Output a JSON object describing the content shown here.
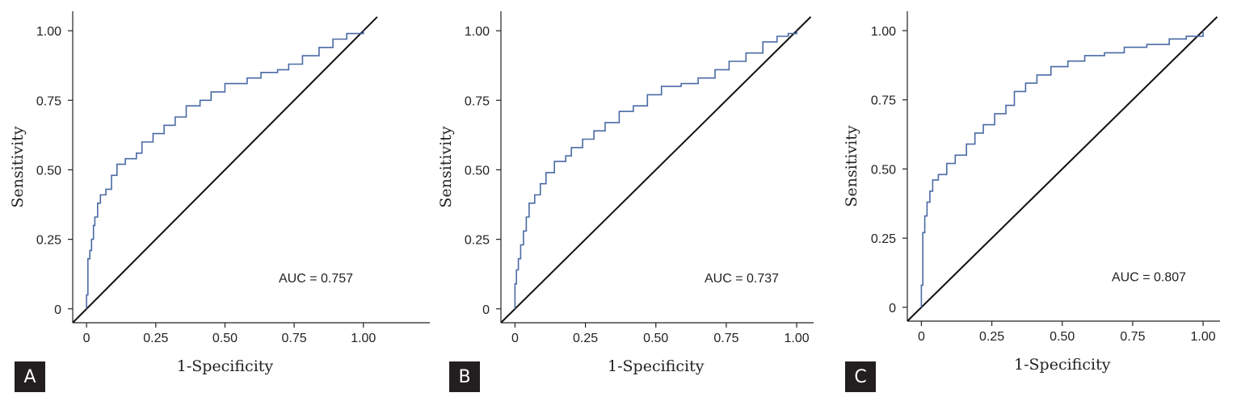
{
  "chart_data": [
    {
      "type": "line",
      "panel": "A",
      "xlabel": "1-Specificity",
      "ylabel": "Sensitivity",
      "xticks": [
        "0",
        "0.25",
        "0.50",
        "0.75",
        "1.00"
      ],
      "yticks": [
        "0",
        "0.25",
        "0.50",
        "0.75",
        "1.00"
      ],
      "annotation": "AUC = 0.757",
      "auc": 0.757,
      "xlim": [
        -0.05,
        1.24
      ],
      "ylim": [
        -0.05,
        1.07
      ],
      "reference_line": [
        [
          -0.05,
          -0.05
        ],
        [
          1.05,
          1.05
        ]
      ],
      "series": [
        {
          "color": "#4a6aa5",
          "points": [
            [
              0,
              0
            ],
            [
              0,
              0.05
            ],
            [
              0.005,
              0.18
            ],
            [
              0.012,
              0.21
            ],
            [
              0.018,
              0.25
            ],
            [
              0.025,
              0.3
            ],
            [
              0.03,
              0.33
            ],
            [
              0.04,
              0.38
            ],
            [
              0.05,
              0.41
            ],
            [
              0.07,
              0.43
            ],
            [
              0.09,
              0.48
            ],
            [
              0.11,
              0.52
            ],
            [
              0.14,
              0.54
            ],
            [
              0.18,
              0.56
            ],
            [
              0.2,
              0.6
            ],
            [
              0.24,
              0.63
            ],
            [
              0.28,
              0.66
            ],
            [
              0.32,
              0.69
            ],
            [
              0.36,
              0.73
            ],
            [
              0.41,
              0.75
            ],
            [
              0.45,
              0.78
            ],
            [
              0.5,
              0.81
            ],
            [
              0.58,
              0.83
            ],
            [
              0.63,
              0.85
            ],
            [
              0.69,
              0.86
            ],
            [
              0.73,
              0.88
            ],
            [
              0.78,
              0.91
            ],
            [
              0.84,
              0.94
            ],
            [
              0.89,
              0.97
            ],
            [
              0.94,
              0.99
            ],
            [
              1.0,
              1.0
            ]
          ]
        }
      ]
    },
    {
      "type": "line",
      "panel": "B",
      "xlabel": "1-Specificity",
      "ylabel": "Sensitivity",
      "xticks": [
        "0",
        "0.25",
        "0.50",
        "0.75",
        "1.00"
      ],
      "yticks": [
        "0",
        "0.25",
        "0.50",
        "0.75",
        "1.00"
      ],
      "annotation": "AUC = 0.737",
      "auc": 0.737,
      "xlim": [
        -0.05,
        1.06
      ],
      "ylim": [
        -0.05,
        1.07
      ],
      "reference_line": [
        [
          -0.05,
          -0.05
        ],
        [
          1.05,
          1.05
        ]
      ],
      "series": [
        {
          "color": "#4a6aa5",
          "points": [
            [
              0,
              0
            ],
            [
              0,
              0.09
            ],
            [
              0.005,
              0.14
            ],
            [
              0.012,
              0.18
            ],
            [
              0.02,
              0.23
            ],
            [
              0.03,
              0.28
            ],
            [
              0.04,
              0.33
            ],
            [
              0.05,
              0.38
            ],
            [
              0.07,
              0.41
            ],
            [
              0.09,
              0.45
            ],
            [
              0.11,
              0.49
            ],
            [
              0.14,
              0.53
            ],
            [
              0.18,
              0.55
            ],
            [
              0.2,
              0.58
            ],
            [
              0.24,
              0.61
            ],
            [
              0.28,
              0.64
            ],
            [
              0.32,
              0.67
            ],
            [
              0.37,
              0.71
            ],
            [
              0.42,
              0.73
            ],
            [
              0.47,
              0.77
            ],
            [
              0.52,
              0.8
            ],
            [
              0.59,
              0.81
            ],
            [
              0.65,
              0.83
            ],
            [
              0.71,
              0.86
            ],
            [
              0.76,
              0.89
            ],
            [
              0.82,
              0.92
            ],
            [
              0.88,
              0.96
            ],
            [
              0.93,
              0.98
            ],
            [
              0.97,
              0.99
            ],
            [
              1.0,
              1.0
            ]
          ]
        }
      ]
    },
    {
      "type": "line",
      "panel": "C",
      "xlabel": "1-Specificity",
      "ylabel": "Sensitivity",
      "xticks": [
        "0",
        "0.25",
        "0.50",
        "0.75",
        "1.00"
      ],
      "yticks": [
        "0",
        "0.25",
        "0.50",
        "0.75",
        "1.00"
      ],
      "annotation": "AUC = 0.807",
      "auc": 0.807,
      "xlim": [
        -0.05,
        1.06
      ],
      "ylim": [
        -0.05,
        1.07
      ],
      "reference_line": [
        [
          -0.05,
          -0.05
        ],
        [
          1.05,
          1.05
        ]
      ],
      "series": [
        {
          "color": "#4a6aa5",
          "points": [
            [
              0,
              0
            ],
            [
              0,
              0.08
            ],
            [
              0.005,
              0.27
            ],
            [
              0.012,
              0.33
            ],
            [
              0.02,
              0.38
            ],
            [
              0.03,
              0.42
            ],
            [
              0.04,
              0.46
            ],
            [
              0.06,
              0.48
            ],
            [
              0.09,
              0.52
            ],
            [
              0.12,
              0.55
            ],
            [
              0.16,
              0.59
            ],
            [
              0.19,
              0.63
            ],
            [
              0.22,
              0.66
            ],
            [
              0.26,
              0.7
            ],
            [
              0.3,
              0.73
            ],
            [
              0.33,
              0.78
            ],
            [
              0.37,
              0.81
            ],
            [
              0.41,
              0.84
            ],
            [
              0.46,
              0.87
            ],
            [
              0.52,
              0.89
            ],
            [
              0.58,
              0.91
            ],
            [
              0.65,
              0.92
            ],
            [
              0.72,
              0.94
            ],
            [
              0.8,
              0.95
            ],
            [
              0.88,
              0.97
            ],
            [
              0.94,
              0.98
            ],
            [
              1.0,
              1.0
            ]
          ]
        }
      ]
    }
  ]
}
